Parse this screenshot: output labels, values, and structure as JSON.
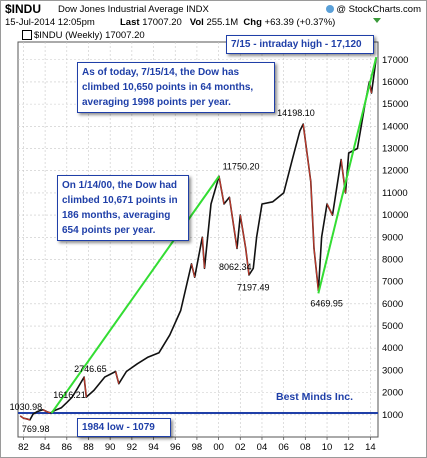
{
  "header": {
    "symbol": "$INDU",
    "name": "Dow Jones Industrial Average INDX",
    "date": "15-Jul-2014 12:05pm",
    "last_label": "Last",
    "last": "17007.20",
    "vol_label": "Vol",
    "vol": "255.1M",
    "chg_label": "Chg",
    "chg": "+63.39 (+0.37%)",
    "source": "@ StockCharts.com"
  },
  "legend": {
    "label": "$INDU (Weekly) 17007.20",
    "color": "#1a1a1a"
  },
  "colors": {
    "price": "#111111",
    "down_bars": "#c0392b",
    "trend": "#33dd33",
    "low_line": "#1f3fa8",
    "note_text": "#1f3fa8"
  },
  "notes": {
    "top_right": "7/15 - intraday high - 17,120",
    "recent": "As of today, 7/15/14, the Dow has climbed 10,650 points in 64 months, averaging 1998 points per year.",
    "early": "On 1/14/00, the Dow had climbed 10,671 points in 186 months, averaging 654 points per year.",
    "low": "1984 low - 1079",
    "brand": "Best Minds Inc."
  },
  "chart_data": {
    "type": "line",
    "title": "$INDU (Weekly) 17007.20",
    "xlabel": "",
    "ylabel": "",
    "xlim": [
      1981.5,
      2014.7
    ],
    "ylim": [
      0,
      17800
    ],
    "y_axis_side": "right",
    "y_ticks": [
      1000,
      2000,
      3000,
      4000,
      5000,
      6000,
      7000,
      8000,
      9000,
      10000,
      11000,
      12000,
      13000,
      14000,
      15000,
      16000,
      17000
    ],
    "x_tick_labels": [
      "82",
      "84",
      "86",
      "88",
      "90",
      "92",
      "94",
      "96",
      "98",
      "00",
      "02",
      "04",
      "06",
      "08",
      "10",
      "12",
      "14"
    ],
    "x_tick_years": [
      1982,
      1984,
      1986,
      1988,
      1990,
      1992,
      1994,
      1996,
      1998,
      2000,
      2002,
      2004,
      2006,
      2008,
      2010,
      2012,
      2014
    ],
    "grid": true,
    "series": [
      {
        "values": [
          [
            1981.7,
            950
          ],
          [
            1982.0,
            850
          ],
          [
            1982.4,
            800
          ],
          [
            1982.6,
            770
          ],
          [
            1982.9,
            1040
          ],
          [
            1983.3,
            1150
          ],
          [
            1983.8,
            1230
          ],
          [
            1984.2,
            1130
          ],
          [
            1984.5,
            1086
          ],
          [
            1984.9,
            1200
          ],
          [
            1985.5,
            1320
          ],
          [
            1986.0,
            1550
          ],
          [
            1986.5,
            1800
          ],
          [
            1987.0,
            2200
          ],
          [
            1987.6,
            2700
          ],
          [
            1987.8,
            1800
          ],
          [
            1988.5,
            2100
          ],
          [
            1989.5,
            2700
          ],
          [
            1990.5,
            2950
          ],
          [
            1990.8,
            2400
          ],
          [
            1991.5,
            2950
          ],
          [
            1992.5,
            3300
          ],
          [
            1993.5,
            3600
          ],
          [
            1994.5,
            3800
          ],
          [
            1995.5,
            4600
          ],
          [
            1996.5,
            5700
          ],
          [
            1997.5,
            7800
          ],
          [
            1997.8,
            7200
          ],
          [
            1998.5,
            9000
          ],
          [
            1998.7,
            7600
          ],
          [
            1999.3,
            10500
          ],
          [
            2000.04,
            11750
          ],
          [
            2000.5,
            10500
          ],
          [
            2001.0,
            10800
          ],
          [
            2001.7,
            8500
          ],
          [
            2002.0,
            10000
          ],
          [
            2002.5,
            8500
          ],
          [
            2002.8,
            7300
          ],
          [
            2003.2,
            7600
          ],
          [
            2003.5,
            9000
          ],
          [
            2004.0,
            10500
          ],
          [
            2005.0,
            10600
          ],
          [
            2006.0,
            11000
          ],
          [
            2006.8,
            12500
          ],
          [
            2007.5,
            13800
          ],
          [
            2007.8,
            14100
          ],
          [
            2008.5,
            11500
          ],
          [
            2008.8,
            8500
          ],
          [
            2009.2,
            6600
          ],
          [
            2009.5,
            9000
          ],
          [
            2010.0,
            10500
          ],
          [
            2010.5,
            10000
          ],
          [
            2011.3,
            12500
          ],
          [
            2011.7,
            11000
          ],
          [
            2012.0,
            12800
          ],
          [
            2012.8,
            13000
          ],
          [
            2013.5,
            15000
          ],
          [
            2013.9,
            16000
          ],
          [
            2014.1,
            15500
          ],
          [
            2014.54,
            17100
          ]
        ]
      }
    ],
    "annotations": [
      {
        "text": "1030.98",
        "x": 1982.2,
        "y": 1030.98
      },
      {
        "text": "769.98",
        "x": 1982.6,
        "y": 769.98
      },
      {
        "text": "1616.21",
        "x": 1985.3,
        "y": 1616.21
      },
      {
        "text": "2746.65",
        "x": 1987.6,
        "y": 2746.65
      },
      {
        "text": "11750.20",
        "x": 2000.0,
        "y": 11750.2
      },
      {
        "text": "8062.34",
        "x": 2001.7,
        "y": 8062.34
      },
      {
        "text": "7197.49",
        "x": 2002.8,
        "y": 7197.49
      },
      {
        "text": "14198.10",
        "x": 2007.8,
        "y": 14198.1
      },
      {
        "text": "6469.95",
        "x": 2009.2,
        "y": 6469.95
      }
    ],
    "trendlines": [
      {
        "from": [
          1984.6,
          1079
        ],
        "to": [
          2000.04,
          11750
        ]
      },
      {
        "from": [
          2009.2,
          6470
        ],
        "to": [
          2014.54,
          17120
        ]
      }
    ],
    "hline": 1079
  }
}
